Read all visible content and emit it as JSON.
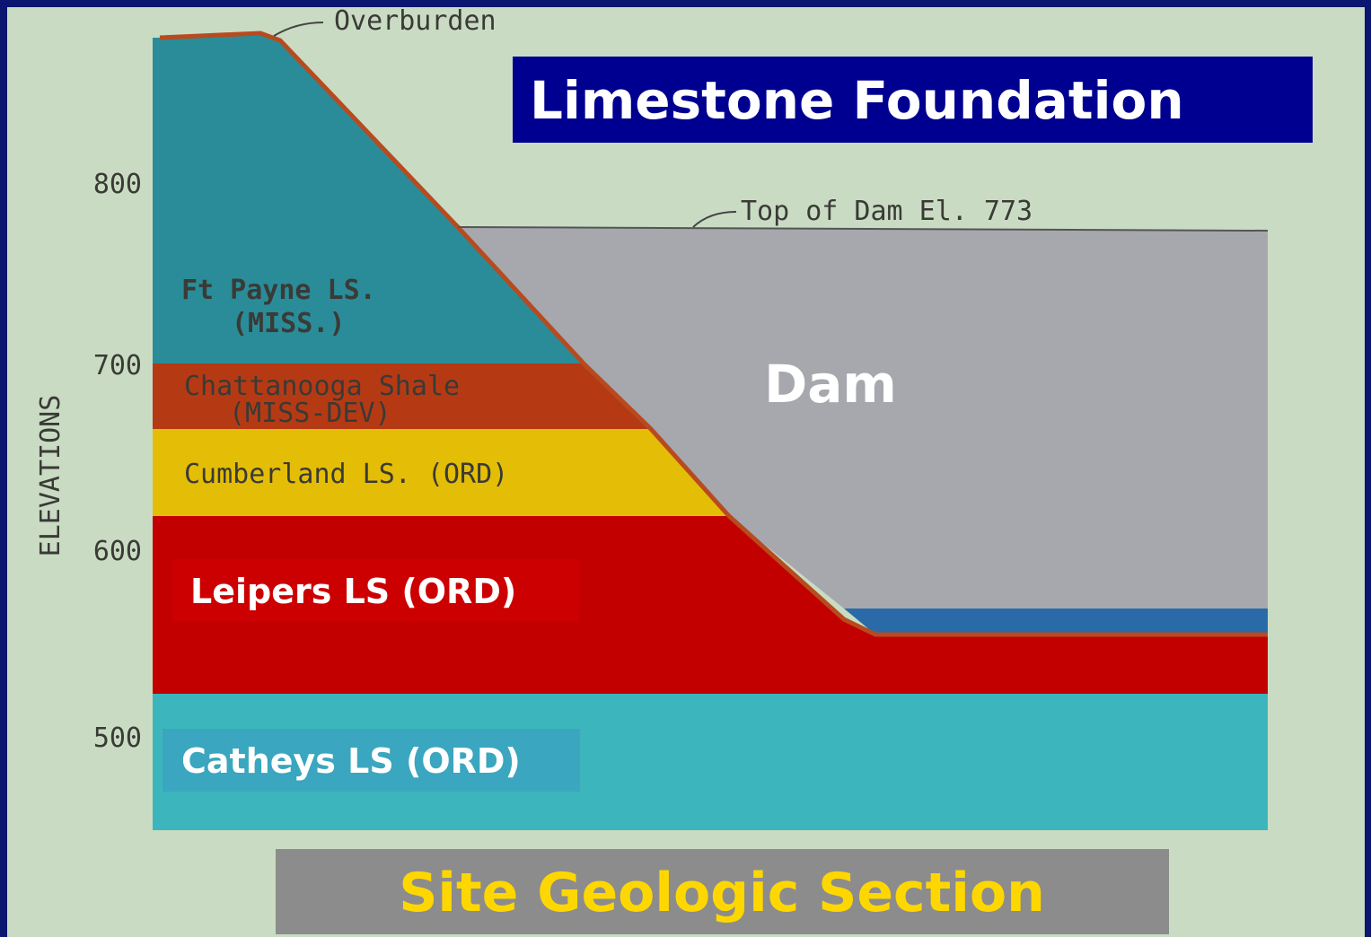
{
  "title": "Limestone Foundation",
  "caption": "Site Geologic Section",
  "axis": {
    "label": "ELEVATIONS",
    "ticks": [
      800,
      700,
      600,
      500
    ]
  },
  "annotations": {
    "overburden": "Overburden",
    "top_of_dam": "Top of Dam El. 773",
    "dam": "Dam"
  },
  "layers": [
    {
      "name": "Ft Payne LS.",
      "age": "(MISS.)"
    },
    {
      "name": "Chattanooga Shale",
      "age": "(MISS-DEV)"
    },
    {
      "name": "Cumberland LS. (ORD)"
    },
    {
      "name": "Leipers LS (ORD)"
    },
    {
      "name": "Catheys LS (ORD)"
    }
  ]
}
